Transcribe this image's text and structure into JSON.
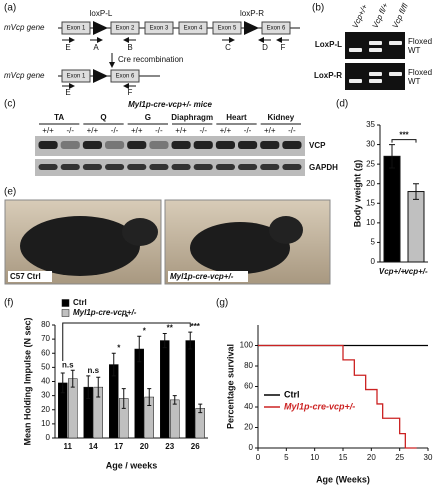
{
  "panels": {
    "a": {
      "label": "(a)",
      "gene": "mVcp gene",
      "loxp_left": "loxP-L",
      "loxp_right": "loxP-R",
      "exons": [
        "Exon 1",
        "Exon 2",
        "Exon 3",
        "Exon 4",
        "Exon 5",
        "Exon 6"
      ],
      "primers": [
        "E",
        "A",
        "B",
        "C",
        "D",
        "F"
      ],
      "arrow_label": "Cre recombination",
      "recombined": {
        "gene": "mVcp gene",
        "exons": [
          "Exon 1",
          "Exon 6"
        ],
        "primers": [
          "E",
          "F"
        ]
      }
    },
    "b": {
      "label": "(b)",
      "columns": [
        "Vcp+/+",
        "Vcp fl/+",
        "Vcp fl/fl"
      ],
      "rows": [
        "LoxP-L",
        "LoxP-R"
      ],
      "bands": [
        [
          "Floxed",
          "WT"
        ],
        [
          "Floxed",
          "WT"
        ]
      ]
    },
    "c": {
      "label": "(c)",
      "title": "Myl1p-cre-vcp+/- mice",
      "tissues": [
        "TA",
        "Q",
        "G",
        "Diaphragm",
        "Heart",
        "Kidney"
      ],
      "genotypes": [
        "+/+",
        "-/-"
      ],
      "blots": [
        "VCP",
        "GAPDH"
      ]
    },
    "e": {
      "label": "(e)",
      "captions": [
        "C57 Ctrl",
        "Myl1p-cre-vcp+/-"
      ]
    }
  },
  "chart_data": [
    {
      "type": "bar",
      "panel_label": "(d)",
      "y_label": "Body weight (g)",
      "categories": [
        "Vcp+/+",
        "vcp+/-"
      ],
      "values": [
        27,
        18
      ],
      "errors": [
        3,
        2
      ],
      "colors": [
        "#000000",
        "#c0c0c0"
      ],
      "annotation": "***",
      "ylim": [
        0,
        35
      ],
      "yticks": [
        0,
        5,
        10,
        15,
        20,
        25,
        30,
        35
      ]
    },
    {
      "type": "grouped_bar",
      "panel_label": "(f)",
      "y_label": "Mean Holding Impulse (N sec)",
      "x_label": "Age / weeks",
      "categories": [
        "11",
        "14",
        "17",
        "20",
        "23",
        "26"
      ],
      "series": [
        {
          "name": "Ctrl",
          "color": "#000000",
          "values": [
            39,
            36,
            52,
            63,
            69,
            69
          ],
          "errors": [
            7,
            8,
            8,
            9,
            5,
            6
          ]
        },
        {
          "name": "Myl1p-cre-vcp+/-",
          "color": "#c0c0c0",
          "values": [
            42,
            36,
            28,
            29,
            27,
            21
          ],
          "errors": [
            6,
            7,
            7,
            6,
            3,
            3
          ]
        }
      ],
      "annotations": [
        "n.s",
        "n.s",
        "*",
        "*",
        "**",
        "***"
      ],
      "bracket_annotation": "*",
      "ylim": [
        0,
        80
      ],
      "yticks": [
        0,
        10,
        20,
        30,
        40,
        50,
        60,
        70,
        80
      ]
    },
    {
      "type": "line",
      "panel_label": "(g)",
      "y_label": "Percentage survival",
      "x_label": "Age (Weeks)",
      "series": [
        {
          "name": "Ctrl",
          "color": "#000000",
          "x": [
            0,
            30
          ],
          "values": [
            100,
            100
          ]
        },
        {
          "name": "Myl1p-cre-vcp+/-",
          "color": "#cc2222",
          "x": [
            0,
            15,
            15,
            17,
            17,
            19,
            19,
            21,
            21,
            22,
            22,
            25,
            25,
            26,
            26,
            27,
            27,
            28
          ],
          "values": [
            100,
            100,
            86,
            86,
            71,
            71,
            57,
            57,
            43,
            43,
            29,
            29,
            14,
            14,
            0,
            0,
            0,
            0
          ]
        }
      ],
      "xlim": [
        0,
        30
      ],
      "xticks": [
        0,
        5,
        10,
        15,
        20,
        25,
        30
      ],
      "ylim": [
        0,
        120
      ],
      "yticks": [
        0,
        20,
        40,
        60,
        80,
        100
      ]
    }
  ]
}
